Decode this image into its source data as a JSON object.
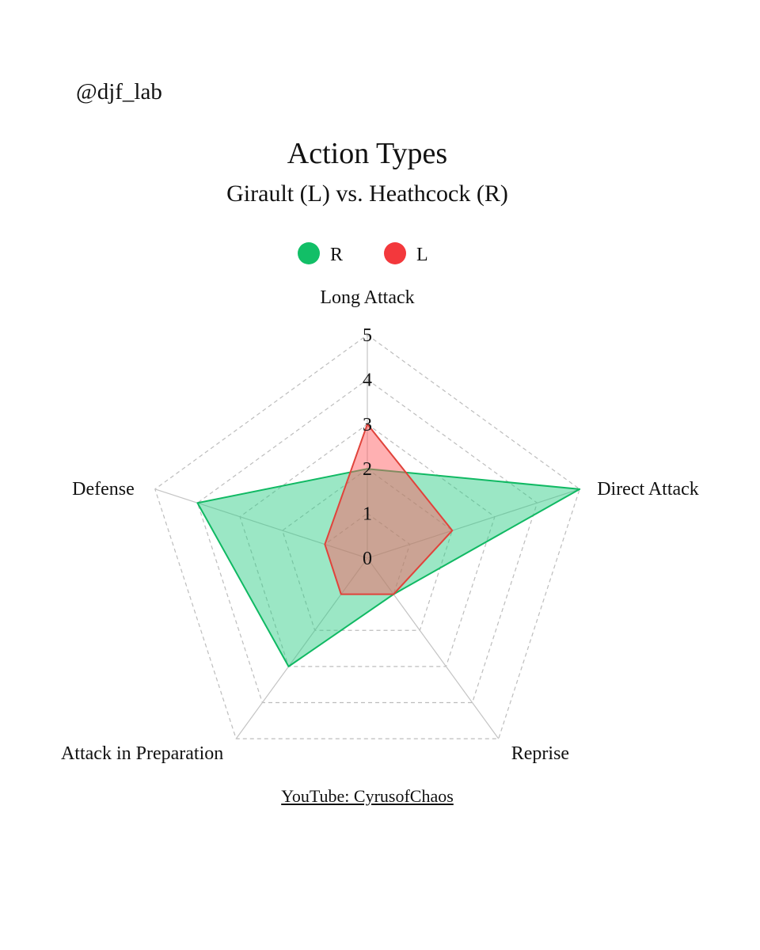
{
  "watermark": "@djf_lab",
  "credit": "YouTube: CyrusofChaos",
  "chart_data": {
    "type": "radar",
    "title": "Action Types",
    "subtitle": "Girault (L) vs. Heathcock (R)",
    "axes": [
      "Long Attack",
      "Direct Attack",
      "Reprise",
      "Attack in Preparation",
      "Defense"
    ],
    "rlim": [
      0,
      5
    ],
    "ticks": [
      0,
      1,
      2,
      3,
      4,
      5
    ],
    "grid": true,
    "legend_position": "top-center",
    "series": [
      {
        "name": "R",
        "color": "#10b963",
        "fill": "#2ecc85",
        "values": [
          2,
          5,
          1,
          3,
          4
        ]
      },
      {
        "name": "L",
        "color": "#e0433b",
        "fill": "#ff5a5f",
        "values": [
          3,
          2,
          1,
          1,
          1
        ]
      }
    ]
  }
}
